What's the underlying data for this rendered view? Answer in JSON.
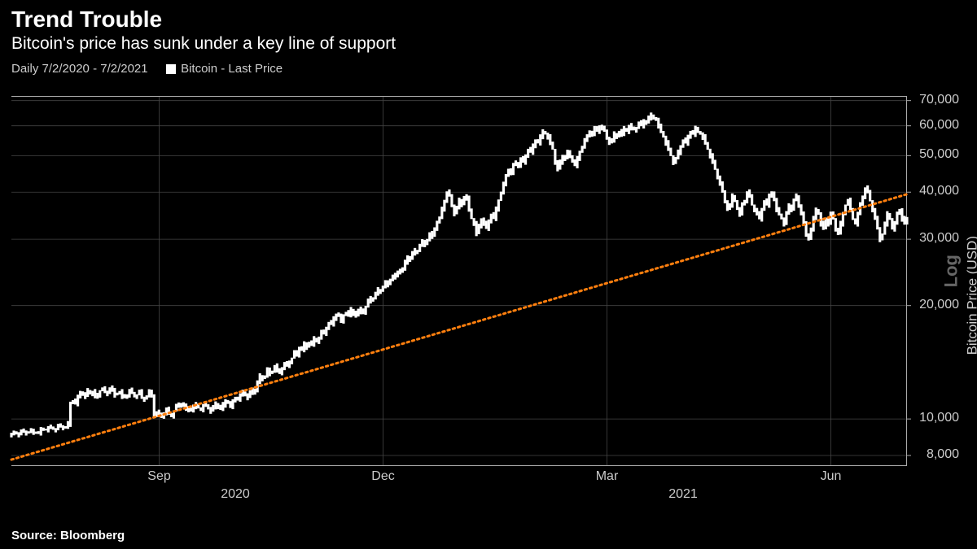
{
  "title": "Trend Trouble",
  "subtitle": "Bitcoin's price has sunk under a key line of support",
  "legend": {
    "date_range": "Daily 7/2/2020 - 7/2/2021",
    "series_label": "Bitcoin - Last Price"
  },
  "source": "Source: Bloomberg",
  "chart": {
    "type": "line-ohlc-log",
    "y_axis_title": "Bitcoin Price (USD)",
    "scale_label": "Log",
    "background_color": "#000000",
    "grid_color": "#444444",
    "axis_color": "#aaaaaa",
    "line_color": "#ffffff",
    "trend_line_color": "#ff7f0e",
    "trend_line_style": "dotted",
    "y_ticks": [
      8000,
      10000,
      20000,
      30000,
      40000,
      50000,
      60000,
      70000
    ],
    "y_min": 7500,
    "y_max": 72000,
    "x_month_ticks": [
      {
        "pos": 0.165,
        "label": "Sep"
      },
      {
        "pos": 0.415,
        "label": "Dec"
      },
      {
        "pos": 0.665,
        "label": "Mar"
      },
      {
        "pos": 0.915,
        "label": "Jun"
      }
    ],
    "x_year_ticks": [
      {
        "pos": 0.25,
        "label": "2020"
      },
      {
        "pos": 0.75,
        "label": "2021"
      }
    ],
    "trend_line": {
      "start_i": 0,
      "start_v": 7800,
      "end_i": 364,
      "end_v": 39500
    },
    "data": [
      9100,
      9150,
      9200,
      9100,
      9250,
      9280,
      9200,
      9230,
      9300,
      9240,
      9180,
      9200,
      9350,
      9400,
      9380,
      9450,
      9500,
      9420,
      9380,
      9550,
      9600,
      9500,
      9480,
      9700,
      11000,
      11200,
      11000,
      11400,
      11800,
      11600,
      11500,
      11900,
      11700,
      11800,
      11400,
      11600,
      11900,
      12000,
      11800,
      11700,
      12100,
      11900,
      11600,
      11700,
      11800,
      11500,
      11400,
      11600,
      11900,
      11700,
      11500,
      11600,
      11800,
      11400,
      11300,
      11500,
      11800,
      11600,
      10200,
      10400,
      10300,
      10100,
      10400,
      10600,
      10300,
      10200,
      10500,
      10800,
      10900,
      11000,
      10800,
      10600,
      10700,
      10500,
      10800,
      10900,
      10700,
      10600,
      10800,
      10900,
      10700,
      10500,
      10700,
      11000,
      10800,
      10600,
      10900,
      11200,
      11000,
      10800,
      11100,
      11400,
      11300,
      11500,
      11800,
      11600,
      11400,
      11700,
      12000,
      11800,
      12500,
      13000,
      12800,
      13000,
      13500,
      13200,
      13400,
      13800,
      13500,
      13200,
      13700,
      14000,
      13800,
      14200,
      14500,
      15000,
      14800,
      15500,
      15200,
      15800,
      15500,
      16000,
      15800,
      16300,
      16000,
      16500,
      17000,
      16800,
      17500,
      18000,
      17800,
      18500,
      19000,
      18700,
      18200,
      18800,
      19200,
      18900,
      19500,
      18800,
      19300,
      19000,
      19600,
      19200,
      19800,
      20500,
      21000,
      20800,
      21500,
      22000,
      21800,
      22500,
      23000,
      22700,
      23500,
      24000,
      23800,
      24500,
      25000,
      24800,
      26000,
      27000,
      26500,
      27500,
      28000,
      27800,
      29000,
      29500,
      29000,
      30000,
      31000,
      30500,
      32000,
      33500,
      34000,
      36000,
      38000,
      40000,
      39000,
      37000,
      35000,
      36500,
      38000,
      37000,
      39000,
      38500,
      36000,
      34000,
      33000,
      31000,
      32500,
      34000,
      33000,
      32000,
      33500,
      35000,
      34000,
      36000,
      38000,
      40000,
      42000,
      44000,
      46000,
      45000,
      47000,
      48000,
      47000,
      49000,
      48000,
      50000,
      52000,
      51000,
      53000,
      55000,
      54000,
      56000,
      58000,
      57000,
      56000,
      54000,
      52000,
      48000,
      46000,
      48000,
      50000,
      49000,
      51000,
      50000,
      48500,
      47000,
      49000,
      51000,
      53000,
      55000,
      56000,
      58000,
      57000,
      59000,
      58000,
      60000,
      59000,
      58000,
      56000,
      54000,
      55000,
      57000,
      56000,
      58000,
      57000,
      59000,
      58000,
      60000,
      59000,
      58500,
      59500,
      61000,
      60000,
      62000,
      61000,
      63000,
      64000,
      63000,
      62000,
      60000,
      58000,
      56000,
      54000,
      52000,
      50000,
      48000,
      49000,
      51000,
      53000,
      55000,
      54000,
      56000,
      58000,
      57000,
      59000,
      58000,
      57000,
      56000,
      54000,
      52000,
      50000,
      48000,
      46000,
      44000,
      42000,
      40000,
      38000,
      36000,
      37000,
      39000,
      38000,
      36000,
      35000,
      37000,
      38000,
      40000,
      39000,
      37000,
      36000,
      35000,
      34000,
      36000,
      38000,
      37000,
      39000,
      40000,
      38000,
      36000,
      35000,
      34000,
      33000,
      35000,
      37000,
      36000,
      38000,
      39000,
      37000,
      35000,
      33000,
      31000,
      30000,
      32000,
      34000,
      36000,
      35000,
      33000,
      32000,
      34000,
      33000,
      35000,
      34000,
      32000,
      31000,
      33000,
      35000,
      37000,
      38000,
      36000,
      34000,
      33000,
      35000,
      37000,
      39000,
      41000,
      40000,
      38000,
      36000,
      34000,
      32000,
      30000,
      31000,
      33000,
      35000,
      34000,
      32000,
      33000,
      35000,
      36000,
      34000,
      33000,
      34000
    ]
  }
}
